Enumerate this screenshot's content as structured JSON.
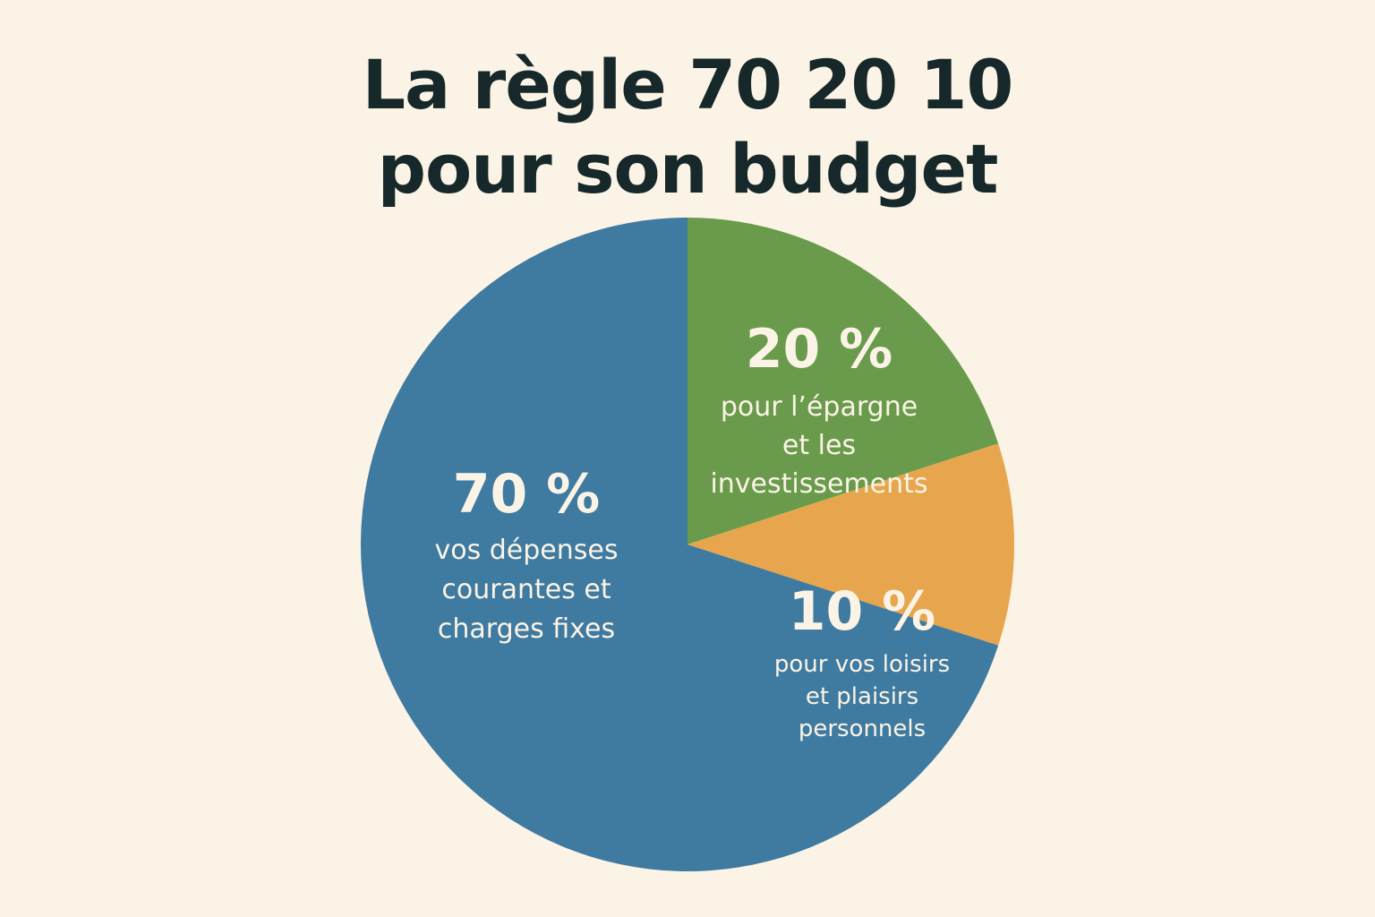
{
  "title": {
    "line1": "La règle 70 20 10",
    "line2": "pour son budget"
  },
  "chart_data": {
    "type": "pie",
    "title": "La règle 70 20 10 pour son budget",
    "slices": [
      {
        "value": 70,
        "label": "70 %",
        "description": [
          "vos dépenses",
          "courantes et",
          "charges fixes"
        ],
        "color": "#3f7aa0"
      },
      {
        "value": 20,
        "label": "20 %",
        "description": [
          "pour l’épargne",
          "et les",
          "investissements"
        ],
        "color": "#6a9b4c"
      },
      {
        "value": 10,
        "label": "10 %",
        "description": [
          "pour vos loisirs",
          "et plaisirs",
          "personnels"
        ],
        "color": "#e7a64d"
      }
    ]
  },
  "colors": {
    "background": "#fbf4e6",
    "title": "#17282a",
    "slice_text": "#fbf4e6"
  }
}
